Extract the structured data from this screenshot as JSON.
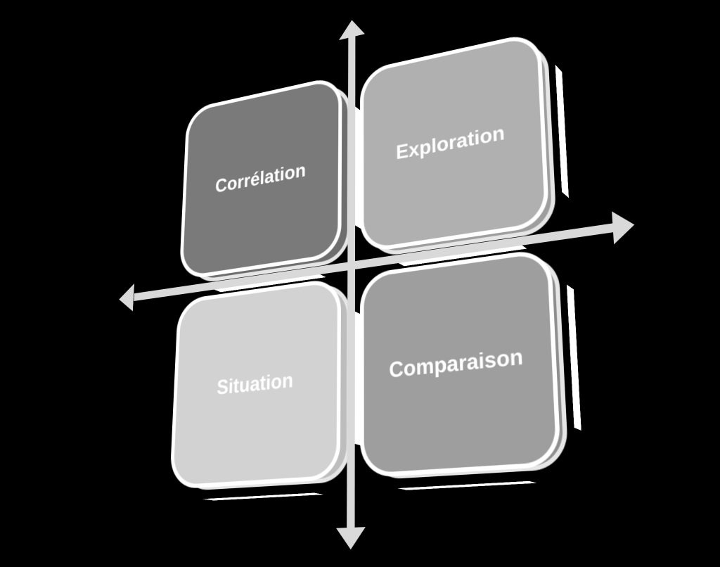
{
  "diagram": {
    "type": "quadrant-matrix-3d",
    "background_color": "#000000",
    "tile_size": 280,
    "tile_depth": 28,
    "tile_border_radius": 48,
    "tile_border_color": "#ffffff",
    "tile_border_width": 6,
    "gap": 30,
    "label_color": "#ffffff",
    "label_fontsize": 30,
    "label_fontweight": 600,
    "perspective": 1800,
    "rotateX_deg": 18,
    "rotateY_deg": -28,
    "axis_color": "#d9d9d9",
    "axis_thickness": 12,
    "axis_length_h": 760,
    "axis_length_v": 720,
    "arrowhead_size": 22,
    "quadrants": {
      "top_left": {
        "label": "Corrélation",
        "fill": "#7a7a7a"
      },
      "top_right": {
        "label": "Exploration",
        "fill": "#b0b0b0"
      },
      "bottom_left": {
        "label": "Situation",
        "fill": "#d2d2d2"
      },
      "bottom_right": {
        "label": "Comparaison",
        "fill": "#9e9e9e"
      }
    }
  }
}
